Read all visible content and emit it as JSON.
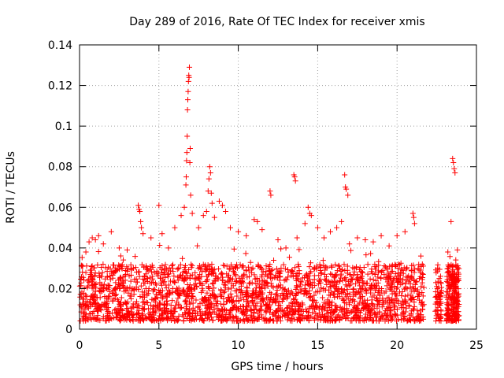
{
  "chart_data": {
    "type": "scatter",
    "title": "Day 289 of 2016, Rate Of TEC Index for receiver xmis",
    "xlabel": "GPS time / hours",
    "ylabel": "ROTI / TECUs",
    "xlim": [
      0,
      25
    ],
    "ylim": [
      0,
      0.14
    ],
    "xticks": [
      0,
      5,
      10,
      15,
      20,
      25
    ],
    "xtick_labels": [
      "0",
      "5",
      "10",
      "15",
      "20",
      "25"
    ],
    "yticks": [
      0,
      0.02,
      0.04,
      0.06,
      0.08,
      0.1,
      0.12,
      0.14
    ],
    "ytick_labels": [
      "0",
      "0.02",
      "0.04",
      "0.06",
      "0.08",
      "0.1",
      "0.12",
      "0.14"
    ],
    "grid": true,
    "marker": "+",
    "color": "#ff0000",
    "series": [
      {
        "name": "ROTI",
        "points": [
          [
            0.2,
            0.031
          ],
          [
            0.4,
            0.038
          ],
          [
            0.6,
            0.043
          ],
          [
            0.8,
            0.045
          ],
          [
            1.0,
            0.044
          ],
          [
            1.2,
            0.046
          ],
          [
            1.5,
            0.042
          ],
          [
            2.0,
            0.048
          ],
          [
            2.5,
            0.04
          ],
          [
            3.0,
            0.039
          ],
          [
            3.7,
            0.061
          ],
          [
            3.75,
            0.059
          ],
          [
            3.8,
            0.058
          ],
          [
            3.85,
            0.053
          ],
          [
            3.9,
            0.05
          ],
          [
            4.0,
            0.047
          ],
          [
            4.5,
            0.045
          ],
          [
            5.0,
            0.061
          ],
          [
            5.2,
            0.047
          ],
          [
            5.6,
            0.04
          ],
          [
            6.0,
            0.05
          ],
          [
            6.4,
            0.056
          ],
          [
            6.6,
            0.06
          ],
          [
            6.7,
            0.071
          ],
          [
            6.72,
            0.075
          ],
          [
            6.74,
            0.083
          ],
          [
            6.76,
            0.087
          ],
          [
            6.78,
            0.095
          ],
          [
            6.8,
            0.108
          ],
          [
            6.82,
            0.113
          ],
          [
            6.84,
            0.117
          ],
          [
            6.86,
            0.122
          ],
          [
            6.88,
            0.125
          ],
          [
            6.9,
            0.124
          ],
          [
            6.92,
            0.129
          ],
          [
            6.95,
            0.082
          ],
          [
            6.97,
            0.089
          ],
          [
            7.0,
            0.066
          ],
          [
            7.1,
            0.057
          ],
          [
            7.5,
            0.05
          ],
          [
            7.8,
            0.056
          ],
          [
            8.0,
            0.058
          ],
          [
            8.1,
            0.068
          ],
          [
            8.15,
            0.074
          ],
          [
            8.2,
            0.08
          ],
          [
            8.25,
            0.077
          ],
          [
            8.3,
            0.067
          ],
          [
            8.35,
            0.062
          ],
          [
            8.5,
            0.055
          ],
          [
            8.8,
            0.063
          ],
          [
            9.0,
            0.061
          ],
          [
            9.2,
            0.058
          ],
          [
            9.5,
            0.05
          ],
          [
            10.0,
            0.048
          ],
          [
            10.5,
            0.046
          ],
          [
            11.0,
            0.054
          ],
          [
            11.2,
            0.053
          ],
          [
            11.5,
            0.049
          ],
          [
            12.0,
            0.068
          ],
          [
            12.05,
            0.066
          ],
          [
            12.5,
            0.044
          ],
          [
            13.0,
            0.04
          ],
          [
            13.5,
            0.076
          ],
          [
            13.55,
            0.075
          ],
          [
            13.6,
            0.073
          ],
          [
            13.7,
            0.045
          ],
          [
            14.2,
            0.052
          ],
          [
            14.4,
            0.06
          ],
          [
            14.5,
            0.057
          ],
          [
            14.6,
            0.056
          ],
          [
            15.0,
            0.05
          ],
          [
            15.4,
            0.045
          ],
          [
            15.8,
            0.048
          ],
          [
            16.2,
            0.05
          ],
          [
            16.5,
            0.053
          ],
          [
            16.7,
            0.076
          ],
          [
            16.75,
            0.07
          ],
          [
            16.8,
            0.069
          ],
          [
            16.9,
            0.066
          ],
          [
            17.0,
            0.042
          ],
          [
            17.5,
            0.045
          ],
          [
            18.0,
            0.044
          ],
          [
            18.5,
            0.043
          ],
          [
            19.0,
            0.046
          ],
          [
            19.5,
            0.041
          ],
          [
            20.0,
            0.046
          ],
          [
            20.5,
            0.048
          ],
          [
            21.0,
            0.057
          ],
          [
            21.05,
            0.055
          ],
          [
            21.1,
            0.052
          ],
          [
            21.5,
            0.036
          ],
          [
            22.5,
            0.021
          ],
          [
            22.6,
            0.017
          ],
          [
            23.2,
            0.038
          ],
          [
            23.4,
            0.053
          ],
          [
            23.5,
            0.084
          ],
          [
            23.55,
            0.082
          ],
          [
            23.6,
            0.079
          ],
          [
            23.65,
            0.077
          ],
          [
            23.8,
            0.039
          ]
        ]
      }
    ]
  }
}
